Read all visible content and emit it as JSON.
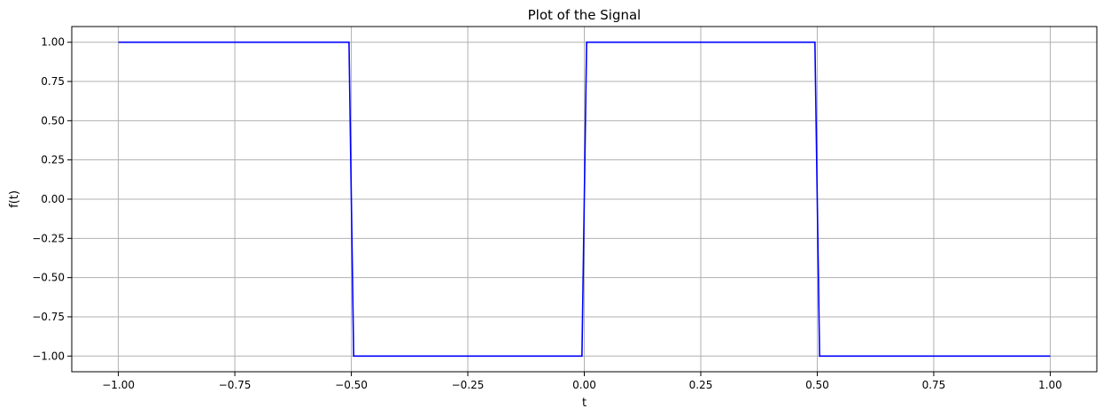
{
  "chart_data": {
    "type": "line",
    "title": "Plot of the Signal",
    "xlabel": "t",
    "ylabel": "f(t)",
    "xlim": [
      -1.1,
      1.1
    ],
    "ylim": [
      -1.1,
      1.1
    ],
    "grid": true,
    "legend": "none",
    "x_ticks": [
      -1.0,
      -0.75,
      -0.5,
      -0.25,
      0.0,
      0.25,
      0.5,
      0.75,
      1.0
    ],
    "x_tick_labels": [
      "−1.00",
      "−0.75",
      "−0.50",
      "−0.25",
      "0.00",
      "0.25",
      "0.50",
      "0.75",
      "1.00"
    ],
    "y_ticks": [
      1.0,
      0.75,
      0.5,
      0.25,
      0.0,
      -0.25,
      -0.5,
      -0.75,
      -1.0
    ],
    "y_tick_labels": [
      "1.00",
      "0.75",
      "0.50",
      "0.25",
      "0.00",
      "−0.25",
      "−0.50",
      "−0.75",
      "−1.00"
    ],
    "series": [
      {
        "color": "#0000ff",
        "x": [
          -1.0,
          -0.505,
          -0.495,
          -0.005,
          0.005,
          0.495,
          0.505,
          1.0
        ],
        "y": [
          1,
          1,
          -1,
          -1,
          1,
          1,
          -1,
          -1
        ]
      }
    ]
  }
}
